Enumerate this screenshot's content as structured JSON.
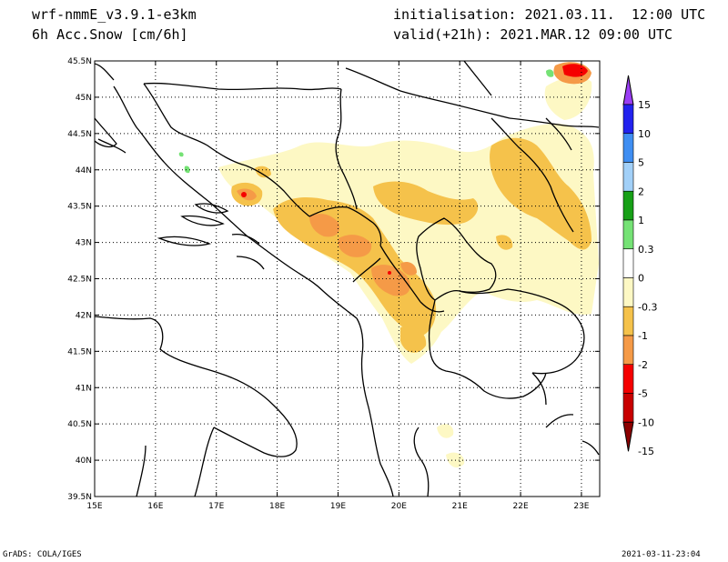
{
  "header": {
    "model": "wrf-nmmE_v3.9.1-e3km",
    "field": "6h Acc.Snow [cm/6h]",
    "initialisation": "initialisation: 2021.03.11.  12:00 UTC",
    "valid": "valid(+21h): 2021.MAR.12 09:00 UTC"
  },
  "footer": {
    "credit": "GrADS: COLA/IGES",
    "timestamp": "2021-03-11-23:04"
  },
  "map": {
    "lon_labels": [
      "15E",
      "16E",
      "17E",
      "18E",
      "19E",
      "20E",
      "21E",
      "22E",
      "23E"
    ],
    "lat_labels": [
      "45.5N",
      "45N",
      "44.5N",
      "44N",
      "43.5N",
      "43N",
      "42.5N",
      "42N",
      "41.5N",
      "41N",
      "40.5N",
      "40N",
      "39.5N"
    ],
    "lon_range": [
      15,
      23.3
    ],
    "lat_range": [
      39.5,
      45.5
    ]
  },
  "colorbar": {
    "levels": [
      "15",
      "10",
      "5",
      "2",
      "1",
      "0.3",
      "0",
      "-0.3",
      "-1",
      "-2",
      "-5",
      "-10",
      "-15"
    ],
    "colors": [
      "#2222ee",
      "#3f8ef2",
      "#a2d0f8",
      "#17a017",
      "#75e275",
      "#ffffff",
      "#fdf8c4",
      "#f5c24b",
      "#f59a47",
      "#f50000",
      "#c80000"
    ],
    "top_color": "#9b3ef5",
    "bottom_color": "#8c0000"
  },
  "colors": {
    "light_yellow": "#fdf8c4",
    "yellow": "#f5c24b",
    "orange": "#f59a47",
    "red": "#f50000",
    "green": "#75e275"
  }
}
